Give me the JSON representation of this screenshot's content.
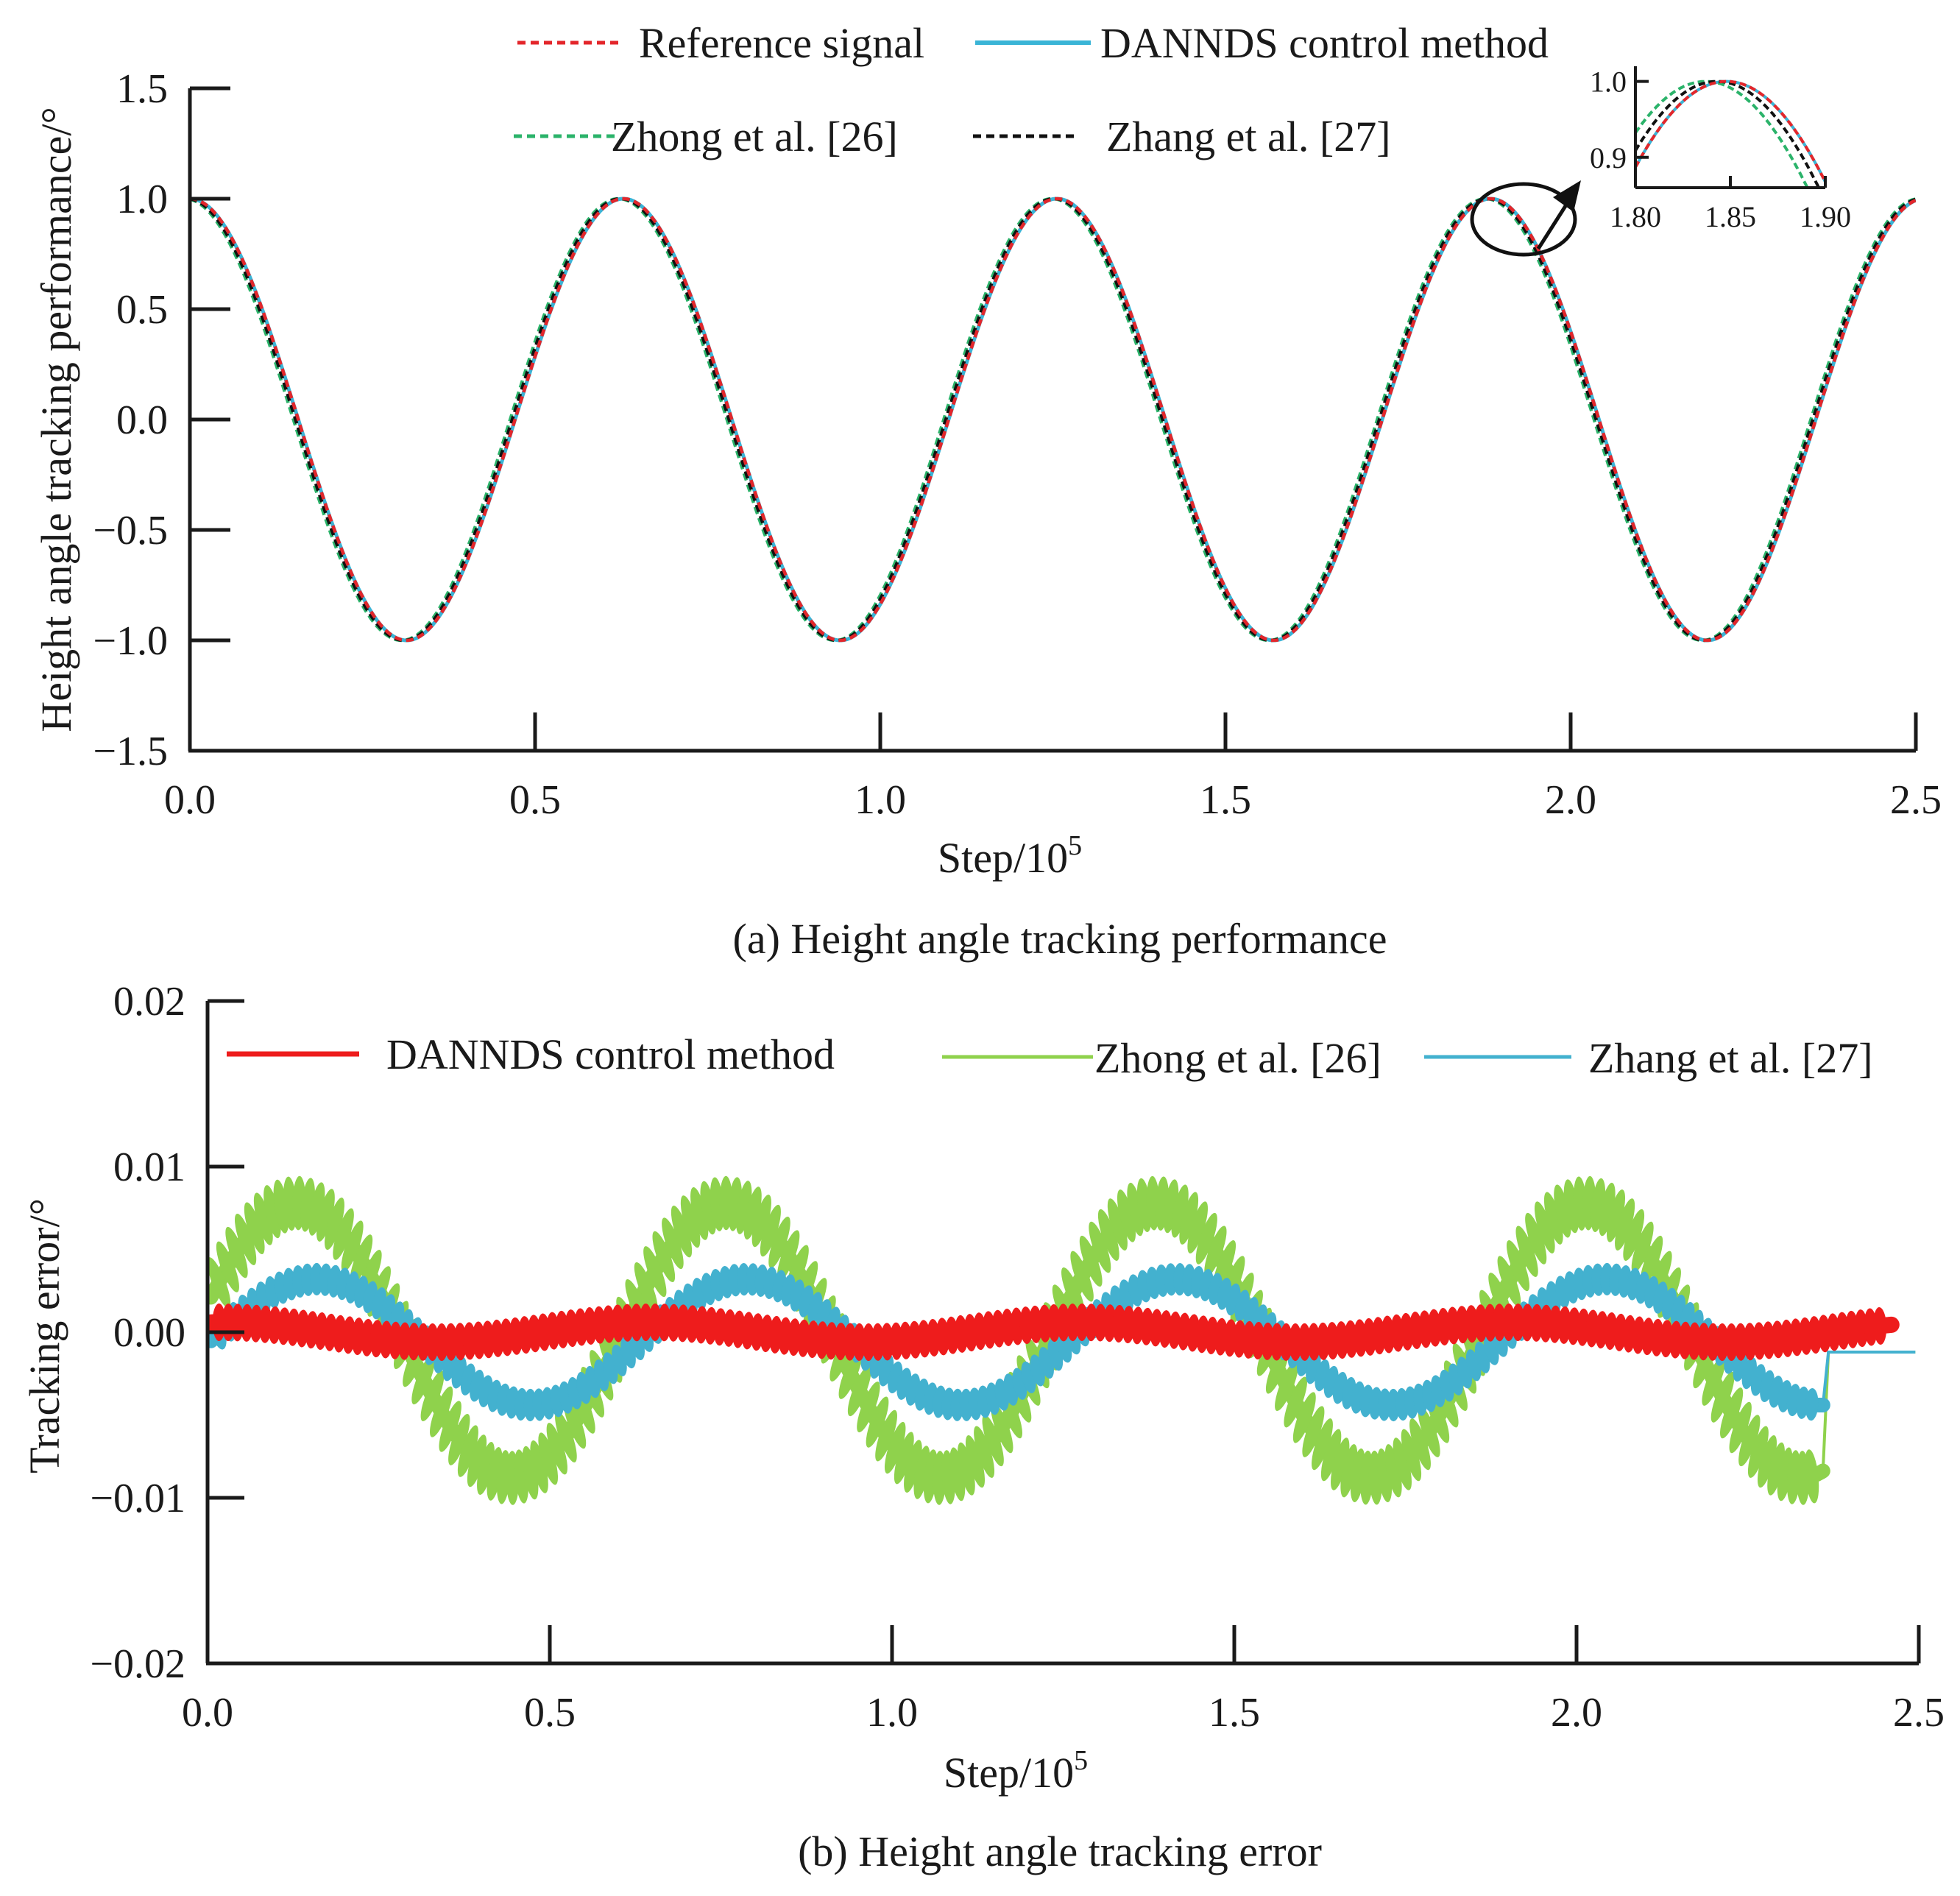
{
  "chart_data": [
    {
      "id": "a",
      "type": "line",
      "caption": "(a) Height angle tracking performance",
      "xlabel": "Step/10",
      "xlabel_sup": "5",
      "ylabel": "Height angle tracking performance/°",
      "xlim": [
        0,
        2.5
      ],
      "ylim": [
        -1.5,
        1.5
      ],
      "xticks": [
        "0.0",
        "0.5",
        "1.0",
        "1.5",
        "2.0",
        "2.5"
      ],
      "yticks": [
        "1.5",
        "1.0",
        "0.5",
        "0.0",
        "−0.5",
        "−1.0",
        "−1.5"
      ],
      "signal": {
        "form": "cos",
        "amplitude": 1.0,
        "period": 0.628,
        "x_start": 0,
        "x_end": 2.5
      },
      "series": [
        {
          "name": "Reference signal",
          "color": "#e3262b",
          "style": "dashed",
          "phase_shift": 0.0
        },
        {
          "name": "DANNDS control method",
          "color": "#3ab4d6",
          "style": "solid",
          "phase_shift": 0.0
        },
        {
          "name": "Zhong et al. [26]",
          "color": "#2bb36a",
          "style": "dashed",
          "phase_shift": -0.007
        },
        {
          "name": "Zhang  et al. [27]",
          "color": "#111111",
          "style": "dashed",
          "phase_shift": -0.004
        }
      ],
      "highlight": {
        "x": 1.885,
        "y": 0.98
      },
      "inset": {
        "xlim": [
          1.8,
          1.9
        ],
        "ylim": [
          0.86,
          1.02
        ],
        "xticks": [
          "1.80",
          "1.85",
          "1.90"
        ],
        "yticks": [
          "1.0",
          "0.9"
        ]
      }
    },
    {
      "id": "b",
      "type": "line",
      "caption": "(b) Height angle tracking error",
      "xlabel": "Step/10",
      "xlabel_sup": "5",
      "ylabel": "Tracking error/°",
      "xlim": [
        0,
        2.5
      ],
      "ylim": [
        -0.02,
        0.02
      ],
      "xticks": [
        "0.0",
        "0.5",
        "1.0",
        "1.5",
        "2.0",
        "2.5"
      ],
      "yticks": [
        "0.02",
        "0.01",
        "0.00",
        "−0.01",
        "−0.02"
      ],
      "period": 0.628,
      "series": [
        {
          "name": "DANNDS control method",
          "color": "#ee1c1c",
          "amplitude": 0.0006,
          "offset": 0.0,
          "phase_center": 0.02,
          "ripple": 0.0012,
          "x_end": 2.46
        },
        {
          "name": "Zhong et al. [26]",
          "color": "#8fd24c",
          "amplitude": 0.0083,
          "offset": -0.0005,
          "phase_center": 0.13,
          "ripple": 0.0022,
          "x_end": 2.36,
          "settle_value": -0.0012
        },
        {
          "name": "Zhang  et al. [27]",
          "color": "#43b1cf",
          "amplitude": 0.0038,
          "offset": -0.0006,
          "phase_center": 0.16,
          "ripple": 0.0009,
          "x_end": 2.36,
          "settle_value": -0.0012
        }
      ]
    }
  ]
}
